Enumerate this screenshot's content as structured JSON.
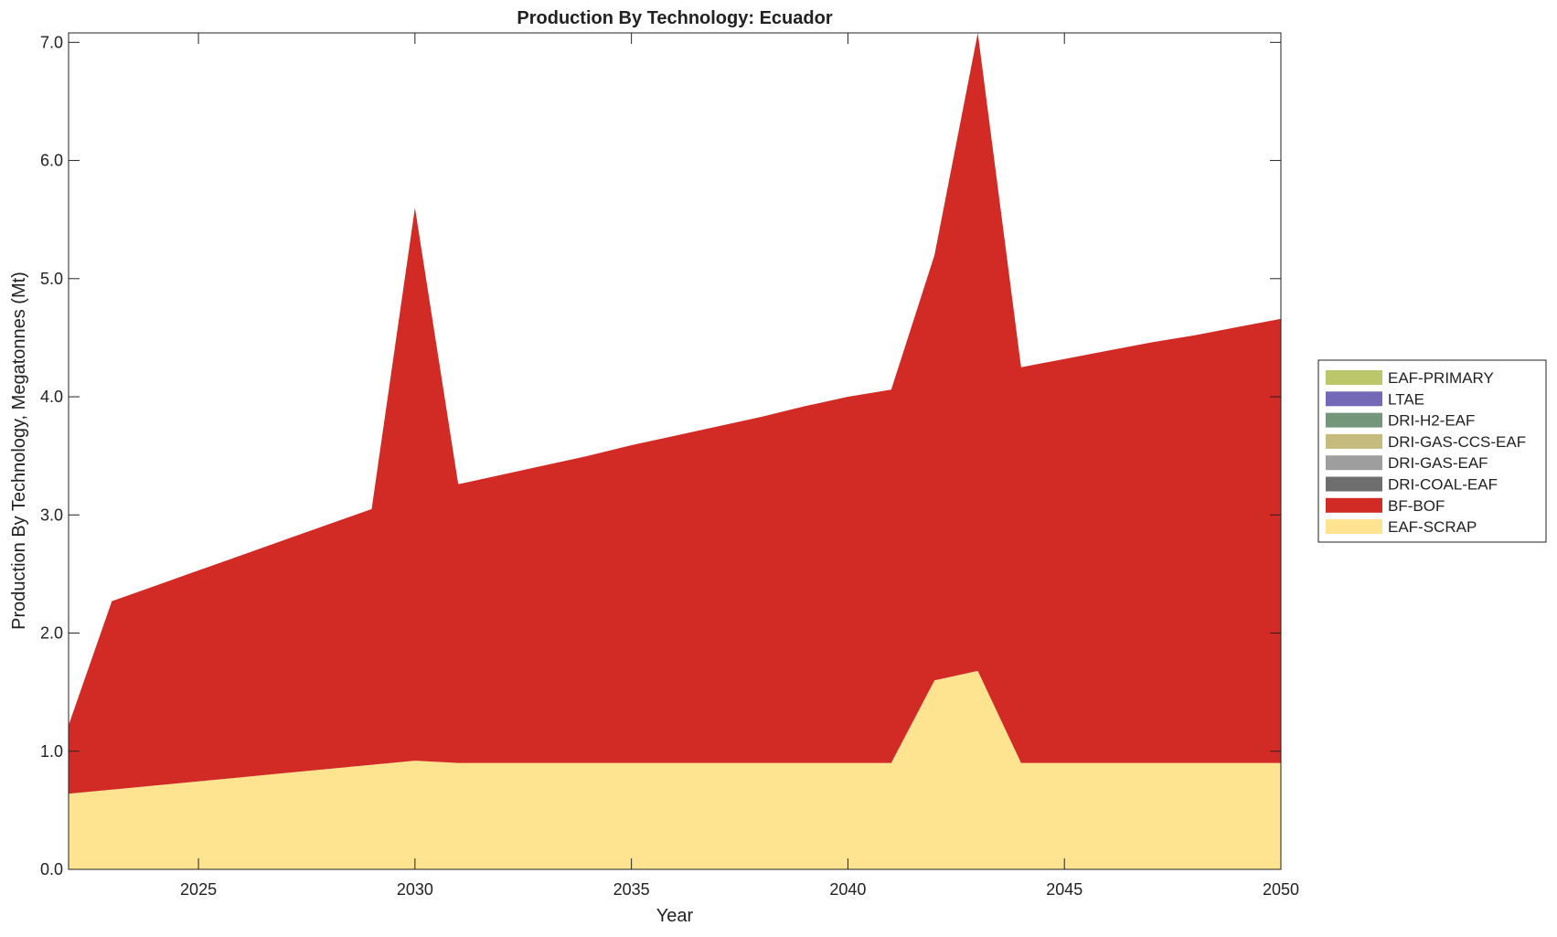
{
  "chart_data": {
    "type": "area",
    "stacked": true,
    "title": "Production By Technology: Ecuador",
    "xlabel": "Year",
    "ylabel": "Production By Technology, Megatonnes (Mt)",
    "xlim": [
      2022,
      2050
    ],
    "ylim": [
      0,
      7.08
    ],
    "xticks": [
      2025,
      2030,
      2035,
      2040,
      2045,
      2050
    ],
    "yticks": [
      0,
      1,
      2,
      3,
      4,
      5,
      6,
      7
    ],
    "ytick_labels": [
      "0.0",
      "1.0",
      "2.0",
      "3.0",
      "4.0",
      "5.0",
      "6.0",
      "7.0"
    ],
    "legend_position": "right",
    "x": [
      2022,
      2023,
      2024,
      2025,
      2026,
      2027,
      2028,
      2029,
      2030,
      2031,
      2032,
      2033,
      2034,
      2035,
      2036,
      2037,
      2038,
      2039,
      2040,
      2041,
      2042,
      2043,
      2044,
      2045,
      2046,
      2047,
      2048,
      2049,
      2050
    ],
    "series": [
      {
        "name": "EAF-SCRAP",
        "color": "#fee391",
        "values": [
          0.64,
          0.675,
          0.71,
          0.745,
          0.78,
          0.815,
          0.85,
          0.885,
          0.92,
          0.9,
          0.9,
          0.9,
          0.9,
          0.9,
          0.9,
          0.9,
          0.9,
          0.9,
          0.9,
          0.9,
          1.6,
          1.68,
          0.9,
          0.9,
          0.9,
          0.9,
          0.9,
          0.9,
          0.9
        ]
      },
      {
        "name": "BF-BOF",
        "color": "#d22b25",
        "values": [
          0.58,
          1.595,
          1.69,
          1.785,
          1.88,
          1.975,
          2.07,
          2.165,
          4.68,
          2.36,
          2.44,
          2.52,
          2.6,
          2.69,
          2.77,
          2.85,
          2.93,
          3.02,
          3.1,
          3.16,
          3.6,
          5.4,
          3.35,
          3.42,
          3.49,
          3.56,
          3.62,
          3.69,
          3.76
        ]
      },
      {
        "name": "DRI-COAL-EAF",
        "color": "#6e6e6e",
        "values": [
          0,
          0,
          0,
          0,
          0,
          0,
          0,
          0,
          0,
          0,
          0,
          0,
          0,
          0,
          0,
          0,
          0,
          0,
          0,
          0,
          0,
          0,
          0,
          0,
          0,
          0,
          0,
          0,
          0
        ]
      },
      {
        "name": "DRI-GAS-EAF",
        "color": "#9e9e9e",
        "values": [
          0,
          0,
          0,
          0,
          0,
          0,
          0,
          0,
          0,
          0,
          0,
          0,
          0,
          0,
          0,
          0,
          0,
          0,
          0,
          0,
          0,
          0,
          0,
          0,
          0,
          0,
          0,
          0,
          0
        ]
      },
      {
        "name": "DRI-GAS-CCS-EAF",
        "color": "#c5bb7d",
        "values": [
          0,
          0,
          0,
          0,
          0,
          0,
          0,
          0,
          0,
          0,
          0,
          0,
          0,
          0,
          0,
          0,
          0,
          0,
          0,
          0,
          0,
          0,
          0,
          0,
          0,
          0,
          0,
          0,
          0
        ]
      },
      {
        "name": "DRI-H2-EAF",
        "color": "#74977b",
        "values": [
          0,
          0,
          0,
          0,
          0,
          0,
          0,
          0,
          0,
          0,
          0,
          0,
          0,
          0,
          0,
          0,
          0,
          0,
          0,
          0,
          0,
          0,
          0,
          0,
          0,
          0,
          0,
          0,
          0
        ]
      },
      {
        "name": "LTAE",
        "color": "#7469b7",
        "values": [
          0,
          0,
          0,
          0,
          0,
          0,
          0,
          0,
          0,
          0,
          0,
          0,
          0,
          0,
          0,
          0,
          0,
          0,
          0,
          0,
          0,
          0,
          0,
          0,
          0,
          0,
          0,
          0,
          0
        ]
      },
      {
        "name": "EAF-PRIMARY",
        "color": "#bcc66b",
        "values": [
          0,
          0,
          0,
          0,
          0,
          0,
          0,
          0,
          0,
          0,
          0,
          0,
          0,
          0,
          0,
          0,
          0,
          0,
          0,
          0,
          0,
          0,
          0,
          0,
          0,
          0,
          0,
          0,
          0
        ]
      }
    ],
    "legend_order": [
      "EAF-PRIMARY",
      "LTAE",
      "DRI-H2-EAF",
      "DRI-GAS-CCS-EAF",
      "DRI-GAS-EAF",
      "DRI-COAL-EAF",
      "BF-BOF",
      "EAF-SCRAP"
    ]
  }
}
